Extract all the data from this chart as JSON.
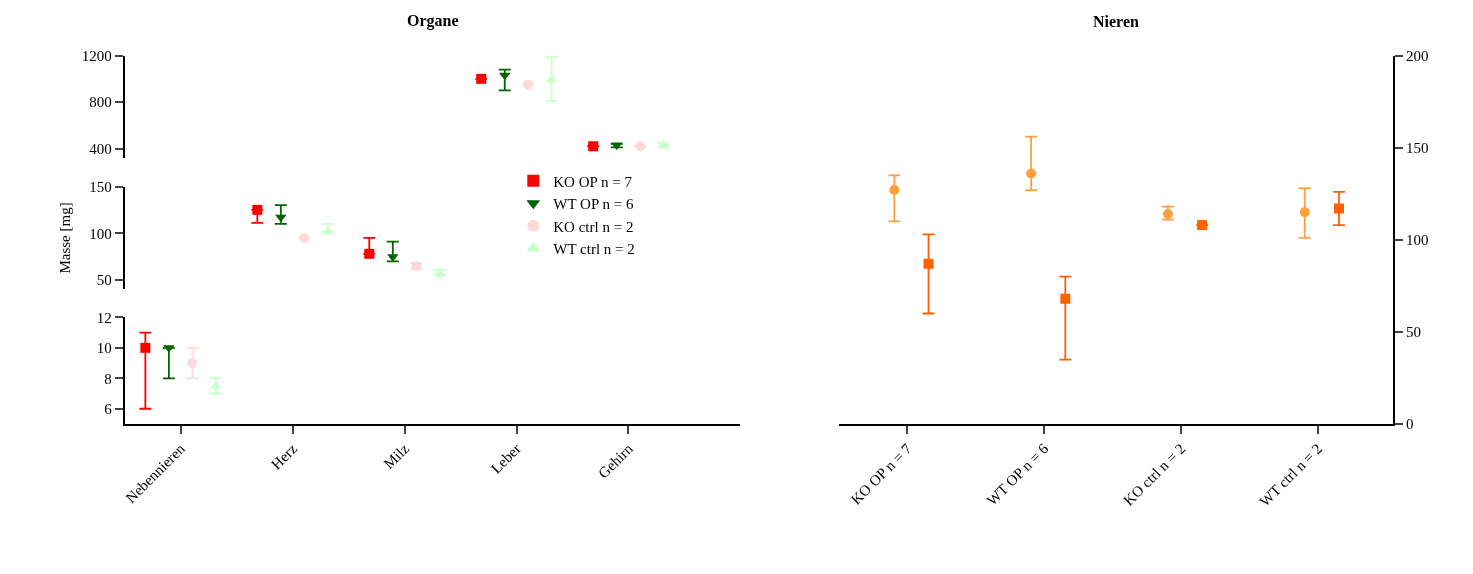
{
  "chart_data": [
    {
      "type": "scatter",
      "title": "Organe",
      "categories": [
        "Nebennieren",
        "Herz",
        "Milz",
        "Leber",
        "Gehirn"
      ],
      "ylim": [
        315,
        1200
      ],
      "yticks": [
        400,
        800,
        1200
      ],
      "tick_labels": "y",
      "series": [
        {
          "color": "#ff0000",
          "marker": "square",
          "values": [
            null,
            null,
            null,
            1000,
            420
          ],
          "errors": [
            null,
            null,
            null,
            null,
            null
          ]
        },
        {
          "color": "#006400",
          "marker": "triangle-down",
          "values": [
            null,
            null,
            null,
            1030,
            430
          ],
          "errors": [
            null,
            null,
            null,
            [
              900,
              1080
            ],
            [
              410,
              440
            ]
          ]
        },
        {
          "color": "#ffd9d9",
          "marker": "circle",
          "values": [
            null,
            null,
            null,
            950,
            420
          ],
          "errors": [
            null,
            null,
            null,
            null,
            null
          ]
        },
        {
          "color": "#c8ffc8",
          "marker": "triangle",
          "values": [
            null,
            null,
            null,
            990,
            430
          ],
          "errors": [
            null,
            null,
            null,
            [
              810,
              1190
            ],
            [
              410,
              440
            ]
          ]
        }
      ]
    },
    {
      "type": "scatter",
      "ylabel": "Masse [mg]",
      "categories": [
        "Nebennieren",
        "Herz",
        "Milz",
        "Leber",
        "Gehirn"
      ],
      "ylim": [
        40,
        150
      ],
      "yticks": [
        50,
        100,
        150
      ],
      "tick_labels": "y",
      "legend": "right",
      "series": [
        {
          "name": "KO OP n = 7",
          "color": "#ff0000",
          "marker": "square",
          "values": [
            null,
            125,
            78,
            null,
            null
          ],
          "errors": [
            null,
            [
              111,
              125
            ],
            [
              78,
              95
            ],
            null,
            null
          ]
        },
        {
          "name": "WT OP n = 6",
          "color": "#006400",
          "marker": "triangle-down",
          "values": [
            null,
            117,
            75,
            null,
            null
          ],
          "errors": [
            null,
            [
              110,
              130
            ],
            [
              70,
              91
            ],
            null,
            null
          ]
        },
        {
          "name": "KO ctrl n = 2",
          "color": "#ffd9d9",
          "marker": "circle",
          "values": [
            null,
            95,
            65,
            null,
            null
          ],
          "errors": [
            null,
            null,
            [
              62,
              68
            ],
            null,
            null
          ]
        },
        {
          "name": "WT ctrl n = 2",
          "color": "#c8ffc8",
          "marker": "triangle",
          "values": [
            null,
            102,
            56,
            null,
            null
          ],
          "errors": [
            null,
            [
              102,
              110
            ],
            [
              56,
              61
            ],
            null,
            null
          ]
        }
      ]
    },
    {
      "type": "scatter",
      "categories": [
        "Nebennieren",
        "Herz",
        "Milz",
        "Leber",
        "Gehirn"
      ],
      "ylim": [
        5,
        12
      ],
      "yticks": [
        6,
        8,
        10,
        12
      ],
      "series": [
        {
          "color": "#ff0000",
          "marker": "square",
          "values": [
            10,
            null,
            null,
            null,
            null
          ],
          "errors": [
            [
              6,
              11
            ],
            null,
            null,
            null,
            null
          ]
        },
        {
          "color": "#006400",
          "marker": "triangle-down",
          "values": [
            10,
            null,
            null,
            null,
            null
          ],
          "errors": [
            [
              8,
              10
            ],
            null,
            null,
            null,
            null
          ]
        },
        {
          "color": "#ffd9d9",
          "marker": "circle",
          "values": [
            9,
            null,
            null,
            null,
            null
          ],
          "errors": [
            [
              8,
              10
            ],
            null,
            null,
            null,
            null
          ]
        },
        {
          "color": "#c8ffc8",
          "marker": "triangle",
          "values": [
            7.5,
            null,
            null,
            null,
            null
          ],
          "errors": [
            [
              7,
              8
            ],
            null,
            null,
            null,
            null
          ]
        }
      ]
    },
    {
      "type": "scatter",
      "title": "Nieren",
      "categories": [
        "KO OP n = 7",
        "WT OP n = 6",
        "KO ctrl n = 2",
        "WT ctrl n = 2"
      ],
      "ylim": [
        0,
        200
      ],
      "yticks": [
        0,
        50,
        100,
        150,
        200
      ],
      "series": [
        {
          "color": "#ffa03c",
          "marker": "circle",
          "values": [
            127,
            136,
            114,
            115
          ],
          "errors": [
            [
              110,
              135
            ],
            [
              127,
              156
            ],
            [
              111,
              118
            ],
            [
              101,
              128
            ]
          ]
        },
        {
          "color": "#ff6000",
          "marker": "square",
          "values": [
            87,
            68,
            108,
            117
          ],
          "errors": [
            [
              60,
              103
            ],
            [
              35,
              80
            ],
            null,
            [
              108,
              126
            ]
          ]
        }
      ]
    }
  ]
}
